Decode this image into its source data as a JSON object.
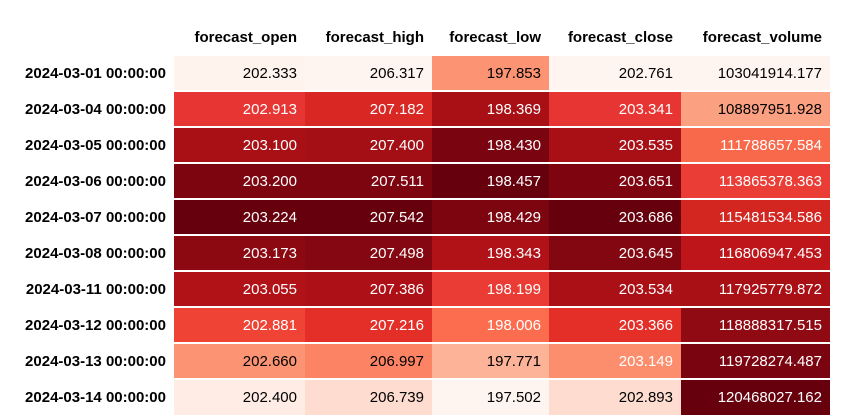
{
  "table": {
    "index_header": "",
    "columns": [
      "forecast_open",
      "forecast_high",
      "forecast_low",
      "forecast_close",
      "forecast_volume"
    ],
    "rows": [
      {
        "index": "2024-03-01 00:00:00",
        "cells": [
          {
            "text": "202.333",
            "bg": "#fff3ee",
            "fg": "#000000"
          },
          {
            "text": "206.317",
            "bg": "#fff5f0",
            "fg": "#000000"
          },
          {
            "text": "197.853",
            "bg": "#fc9474",
            "fg": "#000000"
          },
          {
            "text": "202.761",
            "bg": "#fff5f0",
            "fg": "#000000"
          },
          {
            "text": "103041914.177",
            "bg": "#fff5f0",
            "fg": "#000000"
          }
        ]
      },
      {
        "index": "2024-03-04 00:00:00",
        "cells": [
          {
            "text": "202.913",
            "bg": "#e73533",
            "fg": "#ffffff"
          },
          {
            "text": "207.182",
            "bg": "#d92723",
            "fg": "#ffffff"
          },
          {
            "text": "198.369",
            "bg": "#a81016",
            "fg": "#ffffff"
          },
          {
            "text": "203.341",
            "bg": "#e73533",
            "fg": "#ffffff"
          },
          {
            "text": "108897951.928",
            "bg": "#fca082",
            "fg": "#000000"
          }
        ]
      },
      {
        "index": "2024-03-05 00:00:00",
        "cells": [
          {
            "text": "203.100",
            "bg": "#a81016",
            "fg": "#ffffff"
          },
          {
            "text": "207.400",
            "bg": "#a30f15",
            "fg": "#ffffff"
          },
          {
            "text": "198.430",
            "bg": "#7a0510",
            "fg": "#ffffff"
          },
          {
            "text": "203.535",
            "bg": "#a81016",
            "fg": "#ffffff"
          },
          {
            "text": "111788657.584",
            "bg": "#f8694b",
            "fg": "#ffffff"
          }
        ]
      },
      {
        "index": "2024-03-06 00:00:00",
        "cells": [
          {
            "text": "203.200",
            "bg": "#7c0510",
            "fg": "#ffffff"
          },
          {
            "text": "207.511",
            "bg": "#7c0510",
            "fg": "#ffffff"
          },
          {
            "text": "198.457",
            "bg": "#67000d",
            "fg": "#ffffff"
          },
          {
            "text": "203.651",
            "bg": "#7e0510",
            "fg": "#ffffff"
          },
          {
            "text": "113865378.363",
            "bg": "#ea3d35",
            "fg": "#ffffff"
          }
        ]
      },
      {
        "index": "2024-03-07 00:00:00",
        "cells": [
          {
            "text": "203.224",
            "bg": "#67000d",
            "fg": "#ffffff"
          },
          {
            "text": "207.542",
            "bg": "#67000d",
            "fg": "#ffffff"
          },
          {
            "text": "198.429",
            "bg": "#7c0510",
            "fg": "#ffffff"
          },
          {
            "text": "203.686",
            "bg": "#67000d",
            "fg": "#ffffff"
          },
          {
            "text": "115481534.586",
            "bg": "#d32621",
            "fg": "#ffffff"
          }
        ]
      },
      {
        "index": "2024-03-08 00:00:00",
        "cells": [
          {
            "text": "203.173",
            "bg": "#8c0912",
            "fg": "#ffffff"
          },
          {
            "text": "207.498",
            "bg": "#840711",
            "fg": "#ffffff"
          },
          {
            "text": "198.343",
            "bg": "#b11218",
            "fg": "#ffffff"
          },
          {
            "text": "203.645",
            "bg": "#820711",
            "fg": "#ffffff"
          },
          {
            "text": "116806947.453",
            "bg": "#bd151a",
            "fg": "#ffffff"
          }
        ]
      },
      {
        "index": "2024-03-11 00:00:00",
        "cells": [
          {
            "text": "203.055",
            "bg": "#b11218",
            "fg": "#ffffff"
          },
          {
            "text": "207.386",
            "bg": "#ad1117",
            "fg": "#ffffff"
          },
          {
            "text": "198.199",
            "bg": "#ea3b34",
            "fg": "#ffffff"
          },
          {
            "text": "203.534",
            "bg": "#aa1016",
            "fg": "#ffffff"
          },
          {
            "text": "117925779.872",
            "bg": "#a81016",
            "fg": "#ffffff"
          }
        ]
      },
      {
        "index": "2024-03-12 00:00:00",
        "cells": [
          {
            "text": "202.881",
            "bg": "#ee4335",
            "fg": "#ffffff"
          },
          {
            "text": "207.216",
            "bg": "#e32f27",
            "fg": "#ffffff"
          },
          {
            "text": "198.006",
            "bg": "#fc6d4f",
            "fg": "#ffffff"
          },
          {
            "text": "203.366",
            "bg": "#e32f27",
            "fg": "#ffffff"
          },
          {
            "text": "118888317.515",
            "bg": "#8f0a12",
            "fg": "#ffffff"
          }
        ]
      },
      {
        "index": "2024-03-13 00:00:00",
        "cells": [
          {
            "text": "202.660",
            "bg": "#fc9474",
            "fg": "#000000"
          },
          {
            "text": "206.997",
            "bg": "#fc8363",
            "fg": "#000000"
          },
          {
            "text": "197.771",
            "bg": "#fcb398",
            "fg": "#000000"
          },
          {
            "text": "203.149",
            "bg": "#fc8d6d",
            "fg": "#ffffff"
          },
          {
            "text": "119728274.487",
            "bg": "#7a0510",
            "fg": "#ffffff"
          }
        ]
      },
      {
        "index": "2024-03-14 00:00:00",
        "cells": [
          {
            "text": "202.400",
            "bg": "#ffede5",
            "fg": "#000000"
          },
          {
            "text": "206.739",
            "bg": "#feddd0",
            "fg": "#000000"
          },
          {
            "text": "197.502",
            "bg": "#fff5f0",
            "fg": "#000000"
          },
          {
            "text": "202.893",
            "bg": "#feddd0",
            "fg": "#000000"
          },
          {
            "text": "120468027.162",
            "bg": "#67000d",
            "fg": "#ffffff"
          }
        ]
      }
    ]
  }
}
